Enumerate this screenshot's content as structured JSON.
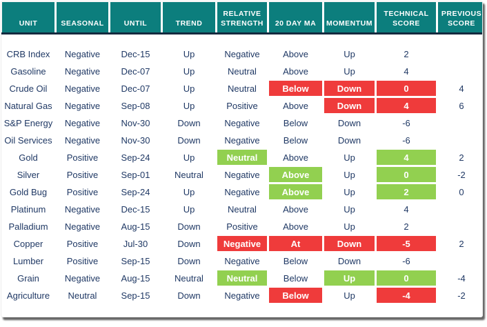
{
  "colors": {
    "header_bg": "#0C7E7D",
    "divider": "#142A3F",
    "row_alt": "#DCE6F1",
    "cell_text": "#1F3864",
    "red": "#EF3B3B",
    "green": "#92D050"
  },
  "chart_data": {
    "type": "table",
    "columns": [
      "UNIT",
      "SEASONAL",
      "UNTIL",
      "TREND",
      "RELATIVE\nSTRENGTH",
      "20 DAY MA",
      "MOMENTUM",
      "TECHNICAL\nSCORE",
      "PREVIOUS\nSCORE"
    ],
    "rows": [
      {
        "cells": [
          {
            "t": "CRB Index"
          },
          {
            "t": "Negative"
          },
          {
            "t": "Dec-15"
          },
          {
            "t": "Up"
          },
          {
            "t": "Negative"
          },
          {
            "t": "Above"
          },
          {
            "t": "Up"
          },
          {
            "t": "2"
          },
          {
            "t": ""
          }
        ]
      },
      {
        "cells": [
          {
            "t": "Gasoline"
          },
          {
            "t": "Negative"
          },
          {
            "t": "Dec-07"
          },
          {
            "t": "Up"
          },
          {
            "t": "Neutral"
          },
          {
            "t": "Above"
          },
          {
            "t": "Up"
          },
          {
            "t": "4"
          },
          {
            "t": ""
          }
        ]
      },
      {
        "cells": [
          {
            "t": "Crude Oil"
          },
          {
            "t": "Negative"
          },
          {
            "t": "Dec-07"
          },
          {
            "t": "Up"
          },
          {
            "t": "Neutral"
          },
          {
            "t": "Below",
            "hl": "red"
          },
          {
            "t": "Down",
            "hl": "red"
          },
          {
            "t": "0",
            "hl": "red"
          },
          {
            "t": "4"
          }
        ]
      },
      {
        "cells": [
          {
            "t": "Natural Gas"
          },
          {
            "t": "Negative"
          },
          {
            "t": "Sep-08"
          },
          {
            "t": "Up"
          },
          {
            "t": "Positive"
          },
          {
            "t": "Above"
          },
          {
            "t": "Down",
            "hl": "red"
          },
          {
            "t": "4",
            "hl": "red"
          },
          {
            "t": "6"
          }
        ]
      },
      {
        "cells": [
          {
            "t": "S&P Energy"
          },
          {
            "t": "Negative"
          },
          {
            "t": "Nov-30"
          },
          {
            "t": "Down"
          },
          {
            "t": "Negative"
          },
          {
            "t": "Below"
          },
          {
            "t": "Down"
          },
          {
            "t": "-6"
          },
          {
            "t": ""
          }
        ]
      },
      {
        "cells": [
          {
            "t": "Oil Services"
          },
          {
            "t": "Negative"
          },
          {
            "t": "Nov-30"
          },
          {
            "t": "Down"
          },
          {
            "t": "Negative"
          },
          {
            "t": "Below"
          },
          {
            "t": "Down"
          },
          {
            "t": "-6"
          },
          {
            "t": ""
          }
        ]
      },
      {
        "cells": [
          {
            "t": "Gold"
          },
          {
            "t": "Positive"
          },
          {
            "t": "Sep-24"
          },
          {
            "t": "Up"
          },
          {
            "t": "Neutral",
            "hl": "green"
          },
          {
            "t": "Above"
          },
          {
            "t": "Up"
          },
          {
            "t": "4",
            "hl": "green"
          },
          {
            "t": "2"
          }
        ]
      },
      {
        "cells": [
          {
            "t": "Silver"
          },
          {
            "t": "Positive"
          },
          {
            "t": "Sep-01"
          },
          {
            "t": "Neutral"
          },
          {
            "t": "Negative"
          },
          {
            "t": "Above",
            "hl": "green"
          },
          {
            "t": "Up"
          },
          {
            "t": "0",
            "hl": "green"
          },
          {
            "t": "-2"
          }
        ]
      },
      {
        "cells": [
          {
            "t": "Gold Bug"
          },
          {
            "t": "Positive"
          },
          {
            "t": "Sep-24"
          },
          {
            "t": "Up"
          },
          {
            "t": "Negative"
          },
          {
            "t": "Above",
            "hl": "green"
          },
          {
            "t": "Up"
          },
          {
            "t": "2",
            "hl": "green"
          },
          {
            "t": "0"
          }
        ]
      },
      {
        "cells": [
          {
            "t": "Platinum"
          },
          {
            "t": "Negative"
          },
          {
            "t": "Dec-15"
          },
          {
            "t": "Up"
          },
          {
            "t": "Neutral"
          },
          {
            "t": "Above"
          },
          {
            "t": "Up"
          },
          {
            "t": "4"
          },
          {
            "t": ""
          }
        ]
      },
      {
        "cells": [
          {
            "t": "Palladium"
          },
          {
            "t": "Negative"
          },
          {
            "t": "Aug-15"
          },
          {
            "t": "Down"
          },
          {
            "t": "Positive"
          },
          {
            "t": "Above"
          },
          {
            "t": "Up"
          },
          {
            "t": "2"
          },
          {
            "t": ""
          }
        ]
      },
      {
        "cells": [
          {
            "t": "Copper"
          },
          {
            "t": "Positive"
          },
          {
            "t": "Jul-30"
          },
          {
            "t": "Down"
          },
          {
            "t": "Negative",
            "hl": "red"
          },
          {
            "t": "At",
            "hl": "red"
          },
          {
            "t": "Down",
            "hl": "red"
          },
          {
            "t": "-5",
            "hl": "red"
          },
          {
            "t": "2"
          }
        ]
      },
      {
        "cells": [
          {
            "t": "Lumber"
          },
          {
            "t": "Positive"
          },
          {
            "t": "Sep-15"
          },
          {
            "t": "Down"
          },
          {
            "t": "Negative"
          },
          {
            "t": "Below"
          },
          {
            "t": "Down"
          },
          {
            "t": "-6"
          },
          {
            "t": ""
          }
        ]
      },
      {
        "cells": [
          {
            "t": "Grain"
          },
          {
            "t": "Negative"
          },
          {
            "t": "Aug-15"
          },
          {
            "t": "Neutral"
          },
          {
            "t": "Neutral",
            "hl": "green"
          },
          {
            "t": "Below"
          },
          {
            "t": "Up",
            "hl": "green"
          },
          {
            "t": "0",
            "hl": "green"
          },
          {
            "t": "-4"
          }
        ]
      },
      {
        "cells": [
          {
            "t": "Agriculture"
          },
          {
            "t": "Neutral"
          },
          {
            "t": "Sep-15"
          },
          {
            "t": "Down"
          },
          {
            "t": "Negative"
          },
          {
            "t": "Below",
            "hl": "red"
          },
          {
            "t": "Up"
          },
          {
            "t": "-4",
            "hl": "red"
          },
          {
            "t": "-2"
          }
        ]
      }
    ]
  }
}
